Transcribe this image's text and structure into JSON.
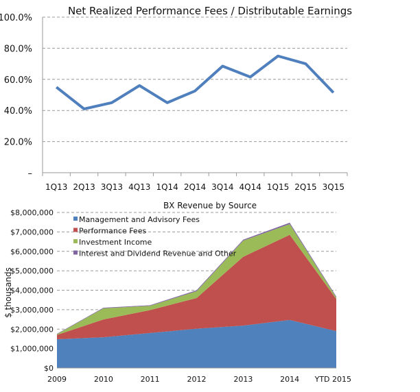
{
  "chart_data": [
    {
      "type": "line",
      "title": "Net Realized Performance Fees / Distributable Earnings",
      "xlabel": "",
      "ylabel": "",
      "categories": [
        "1Q13",
        "2Q13",
        "3Q13",
        "4Q13",
        "1Q14",
        "2Q14",
        "3Q14",
        "4Q14",
        "1Q15",
        "2Q15",
        "3Q15"
      ],
      "values": [
        55,
        41,
        45,
        56,
        45,
        52.5,
        68.5,
        61.5,
        75,
        70,
        51.5
      ],
      "ylim": [
        0,
        100
      ],
      "yticks": [
        0,
        20,
        40,
        60,
        80,
        100
      ],
      "ytick_labels": [
        "–",
        "20.0%",
        "40.0%",
        "60.0%",
        "80.0%",
        "100.0%"
      ],
      "grid": true,
      "color": "#4f7fbc"
    },
    {
      "type": "area",
      "stacked": true,
      "title": "BX Revenue by Source",
      "xlabel": "",
      "ylabel": "$ thousands",
      "categories": [
        "2009",
        "2010",
        "2011",
        "2012",
        "2013",
        "2014",
        "YTD 2015"
      ],
      "ylim": [
        0,
        8000000
      ],
      "yticks": [
        0,
        1000000,
        2000000,
        3000000,
        4000000,
        5000000,
        6000000,
        7000000,
        8000000
      ],
      "ytick_labels": [
        "$0",
        "$1,000,000",
        "$2,000,000",
        "$3,000,000",
        "$4,000,000",
        "$5,000,000",
        "$6,000,000",
        "$7,000,000",
        "$8,000,000"
      ],
      "grid": true,
      "legend": "top-left",
      "series": [
        {
          "name": "Management and Advisory Fees",
          "color": "#4f81bd",
          "values": [
            1480000,
            1580000,
            1800000,
            2020000,
            2180000,
            2470000,
            1900000
          ]
        },
        {
          "name": "Performance Fees",
          "color": "#c0504d",
          "values": [
            220000,
            920000,
            1180000,
            1580000,
            3540000,
            4380000,
            1650000
          ]
        },
        {
          "name": "Investment Income",
          "color": "#9bbb59",
          "values": [
            40000,
            570000,
            220000,
            350000,
            830000,
            550000,
            80000
          ]
        },
        {
          "name": "Interest and Dividend Revenue and Other",
          "color": "#8064a2",
          "values": [
            20000,
            30000,
            30000,
            50000,
            50000,
            70000,
            50000
          ]
        }
      ]
    }
  ]
}
